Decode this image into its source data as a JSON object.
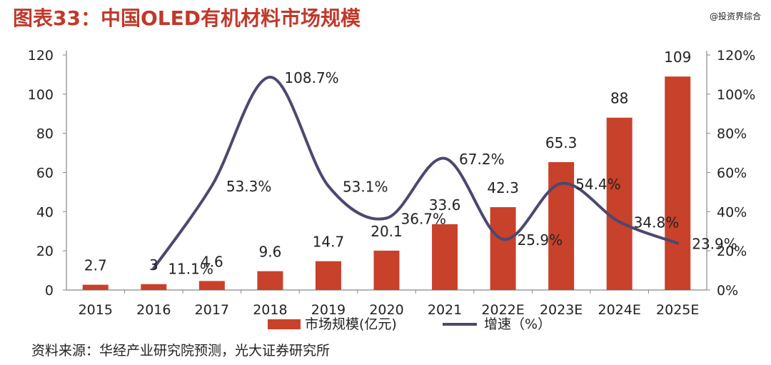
{
  "header": {
    "title": "图表33：中国OLED有机材料市场规模",
    "watermark": "@投资界综合"
  },
  "source": "资料来源：华经产业研究院预测，光大证券研究所",
  "colors": {
    "bar": "#c8412a",
    "line": "#4b4870",
    "title": "#c0392b"
  },
  "chart_data": {
    "type": "bar+line",
    "categories": [
      "2015",
      "2016",
      "2017",
      "2018",
      "2019",
      "2020",
      "2021",
      "2022E",
      "2023E",
      "2024E",
      "2025E"
    ],
    "series": [
      {
        "name": "市场规模(亿元)",
        "type": "bar",
        "axis": "left",
        "values": [
          2.7,
          3,
          4.6,
          9.6,
          14.7,
          20.1,
          33.6,
          42.3,
          65.3,
          88,
          109
        ],
        "labels": [
          "2.7",
          "3",
          "4.6",
          "9.6",
          "14.7",
          "20.1",
          "33.6",
          "42.3",
          "65.3",
          "88",
          "109"
        ]
      },
      {
        "name": "增速（%）",
        "type": "line",
        "axis": "right",
        "values": [
          null,
          11.1,
          53.3,
          108.7,
          53.1,
          36.7,
          67.2,
          25.9,
          54.4,
          34.8,
          23.9
        ],
        "labels": [
          "",
          "11.1%",
          "53.3%",
          "108.7%",
          "53.1%",
          "36.7%",
          "67.2%",
          "25.9%",
          "54.4%",
          "34.8%",
          "23.9%"
        ]
      }
    ],
    "left_axis": {
      "min": 0,
      "max": 120,
      "ticks": [
        "0",
        "20",
        "40",
        "60",
        "80",
        "100",
        "120"
      ]
    },
    "right_axis": {
      "min": 0,
      "max": 120,
      "ticks": [
        "0%",
        "20%",
        "40%",
        "60%",
        "80%",
        "100%",
        "120%"
      ]
    },
    "legend": {
      "position": "bottom",
      "bar_label": "市场规模(亿元)",
      "line_label": "增速（%）"
    }
  }
}
